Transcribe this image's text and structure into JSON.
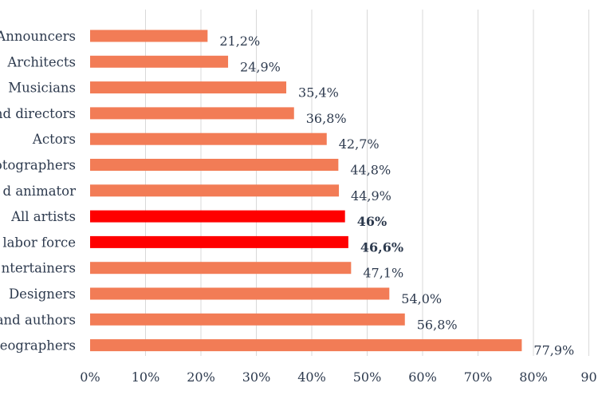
{
  "chart_data": {
    "type": "bar",
    "orientation": "horizontal",
    "categories": [
      "Announcers",
      "Architects",
      "Musicians",
      "nd directors",
      "Actors",
      "otographers",
      "d animator",
      "All artists",
      "labor force",
      "ntertainers",
      "Designers",
      "and authors",
      "eographers"
    ],
    "values": [
      21.2,
      24.9,
      35.4,
      36.8,
      42.7,
      44.8,
      44.9,
      46,
      46.6,
      47.1,
      54.0,
      56.8,
      77.9
    ],
    "value_labels": [
      "21,2%",
      "24,9%",
      "35,4%",
      "36,8%",
      "42,7%",
      "44,8%",
      "44,9%",
      "46%",
      "46,6%",
      "47,1%",
      "54,0%",
      "56,8%",
      "77,9%"
    ],
    "highlighted": [
      false,
      false,
      false,
      false,
      false,
      false,
      false,
      true,
      true,
      false,
      false,
      false,
      false
    ],
    "xlim": [
      0,
      90
    ],
    "ticks": [
      0,
      10,
      20,
      30,
      40,
      50,
      60,
      70,
      80,
      90
    ],
    "tick_labels": [
      "0%",
      "10%",
      "20%",
      "30%",
      "40%",
      "50%",
      "60%",
      "70%",
      "80%",
      "90"
    ],
    "grid": "vertical",
    "colors": {
      "bar": "#f27c56",
      "highlight": "#ff0000",
      "grid": "#d9d9d9",
      "text": "#2d3a4e"
    }
  }
}
